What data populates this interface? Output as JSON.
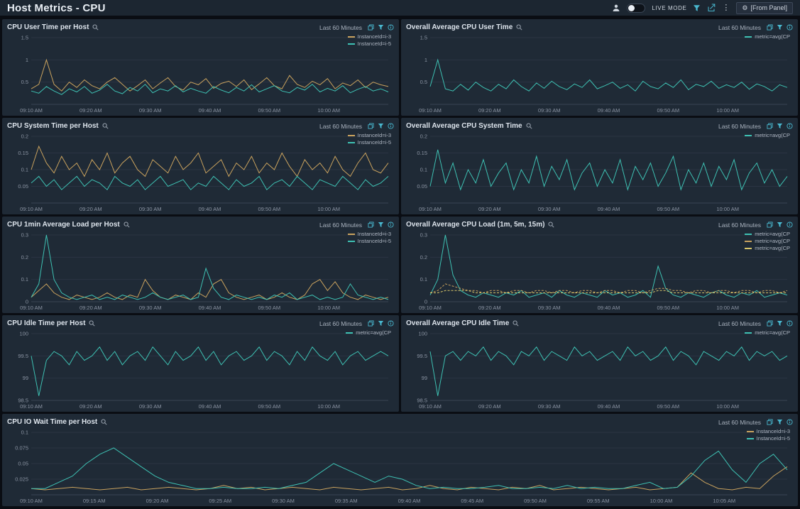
{
  "header": {
    "title": "Host Metrics - CPU",
    "live_mode_label": "LIVE MODE",
    "from_panel_label": "[From Panel]"
  },
  "colors": {
    "accent_teal": "#49b8cf",
    "series_orange": "#c9a25e",
    "series_teal": "#3ec1b3",
    "series_yellow": "#d8c66a",
    "panel_bg": "#1f2a36",
    "grid_line": "#2b3443"
  },
  "panels": [
    {
      "type": "line",
      "title": "CPU User Time per Host",
      "time_range": "Last 60 Minutes",
      "ylim": [
        0,
        1.5
      ],
      "yticks": [
        0.5,
        1,
        1.5
      ],
      "xticks": [
        "09:10 AM",
        "09:20 AM",
        "09:30 AM",
        "09:40 AM",
        "09:50 AM",
        "10:00 AM"
      ],
      "series": [
        {
          "name": "InstanceId=i-3",
          "color": "#c9a25e",
          "values": [
            0.35,
            0.45,
            1.0,
            0.45,
            0.3,
            0.5,
            0.38,
            0.55,
            0.42,
            0.35,
            0.5,
            0.6,
            0.45,
            0.3,
            0.42,
            0.55,
            0.35,
            0.48,
            0.6,
            0.4,
            0.32,
            0.5,
            0.44,
            0.58,
            0.36,
            0.47,
            0.52,
            0.4,
            0.55,
            0.33,
            0.46,
            0.6,
            0.42,
            0.35,
            0.65,
            0.45,
            0.38,
            0.52,
            0.44,
            0.58,
            0.35,
            0.48,
            0.42,
            0.55,
            0.38,
            0.5,
            0.44,
            0.4
          ]
        },
        {
          "name": "InstanceId=i-5",
          "color": "#3ec1b3",
          "values": [
            0.3,
            0.25,
            0.4,
            0.3,
            0.22,
            0.35,
            0.28,
            0.4,
            0.25,
            0.32,
            0.45,
            0.3,
            0.24,
            0.38,
            0.3,
            0.45,
            0.26,
            0.35,
            0.3,
            0.42,
            0.28,
            0.36,
            0.3,
            0.25,
            0.4,
            0.32,
            0.26,
            0.38,
            0.3,
            0.44,
            0.28,
            0.35,
            0.42,
            0.3,
            0.26,
            0.38,
            0.32,
            0.45,
            0.28,
            0.36,
            0.3,
            0.42,
            0.26,
            0.34,
            0.4,
            0.3,
            0.35,
            0.28
          ]
        }
      ]
    },
    {
      "type": "line",
      "title": "Overall Average CPU User Time",
      "time_range": "Last 60 Minutes",
      "ylim": [
        0,
        1.5
      ],
      "yticks": [
        0.5,
        1,
        1.5
      ],
      "xticks": [
        "09:10 AM",
        "09:20 AM",
        "09:30 AM",
        "09:40 AM",
        "09:50 AM",
        "10:00 AM"
      ],
      "series": [
        {
          "name": "metric=avg(CP",
          "color": "#3ec1b3",
          "values": [
            0.4,
            1.0,
            0.35,
            0.3,
            0.45,
            0.32,
            0.5,
            0.38,
            0.3,
            0.45,
            0.35,
            0.55,
            0.4,
            0.3,
            0.48,
            0.36,
            0.52,
            0.4,
            0.33,
            0.46,
            0.38,
            0.55,
            0.35,
            0.42,
            0.5,
            0.36,
            0.44,
            0.3,
            0.52,
            0.4,
            0.35,
            0.48,
            0.38,
            0.55,
            0.33,
            0.45,
            0.4,
            0.52,
            0.36,
            0.44,
            0.38,
            0.5,
            0.34,
            0.46,
            0.4,
            0.3,
            0.44,
            0.38
          ]
        }
      ]
    },
    {
      "type": "line",
      "title": "CPU System Time per Host",
      "time_range": "Last 60 Minutes",
      "ylim": [
        0,
        0.2
      ],
      "yticks": [
        0.05,
        0.1,
        0.15,
        0.2
      ],
      "xticks": [
        "09:10 AM",
        "09:20 AM",
        "09:30 AM",
        "09:40 AM",
        "09:50 AM",
        "10:00 AM"
      ],
      "series": [
        {
          "name": "InstanceId=i-3",
          "color": "#c9a25e",
          "values": [
            0.1,
            0.17,
            0.12,
            0.09,
            0.14,
            0.1,
            0.12,
            0.08,
            0.13,
            0.1,
            0.15,
            0.09,
            0.12,
            0.14,
            0.1,
            0.08,
            0.13,
            0.11,
            0.09,
            0.14,
            0.1,
            0.12,
            0.15,
            0.09,
            0.11,
            0.13,
            0.08,
            0.12,
            0.1,
            0.14,
            0.09,
            0.12,
            0.1,
            0.15,
            0.11,
            0.08,
            0.13,
            0.1,
            0.12,
            0.09,
            0.14,
            0.1,
            0.08,
            0.12,
            0.15,
            0.1,
            0.09,
            0.12
          ]
        },
        {
          "name": "InstanceId=i-5",
          "color": "#3ec1b3",
          "values": [
            0.06,
            0.08,
            0.05,
            0.07,
            0.04,
            0.06,
            0.08,
            0.05,
            0.07,
            0.06,
            0.04,
            0.08,
            0.06,
            0.05,
            0.07,
            0.04,
            0.06,
            0.08,
            0.05,
            0.06,
            0.07,
            0.04,
            0.06,
            0.05,
            0.08,
            0.06,
            0.04,
            0.07,
            0.05,
            0.06,
            0.08,
            0.04,
            0.06,
            0.07,
            0.05,
            0.08,
            0.06,
            0.04,
            0.07,
            0.06,
            0.05,
            0.08,
            0.06,
            0.04,
            0.07,
            0.05,
            0.06,
            0.08
          ]
        }
      ]
    },
    {
      "type": "line",
      "title": "Overall Average CPU System Time",
      "time_range": "Last 60 Minutes",
      "ylim": [
        0,
        0.2
      ],
      "yticks": [
        0.05,
        0.1,
        0.15,
        0.2
      ],
      "xticks": [
        "09:10 AM",
        "09:20 AM",
        "09:30 AM",
        "09:40 AM",
        "09:50 AM",
        "10:00 AM"
      ],
      "series": [
        {
          "name": "metric=avg(CP",
          "color": "#3ec1b3",
          "values": [
            0.05,
            0.16,
            0.06,
            0.12,
            0.04,
            0.1,
            0.06,
            0.13,
            0.05,
            0.09,
            0.12,
            0.04,
            0.1,
            0.06,
            0.14,
            0.05,
            0.11,
            0.07,
            0.13,
            0.04,
            0.09,
            0.12,
            0.05,
            0.1,
            0.06,
            0.13,
            0.04,
            0.11,
            0.07,
            0.12,
            0.05,
            0.09,
            0.14,
            0.04,
            0.1,
            0.06,
            0.12,
            0.05,
            0.11,
            0.07,
            0.13,
            0.04,
            0.09,
            0.12,
            0.06,
            0.1,
            0.05,
            0.08
          ]
        }
      ]
    },
    {
      "type": "line",
      "title": "CPU 1min Average Load per Host",
      "time_range": "Last 60 Minutes",
      "ylim": [
        0,
        0.3
      ],
      "yticks": [
        0,
        0.1,
        0.2,
        0.3
      ],
      "xticks": [
        "09:10 AM",
        "09:20 AM",
        "09:30 AM",
        "09:40 AM",
        "09:50 AM",
        "10:00 AM"
      ],
      "series": [
        {
          "name": "InstanceId=i-3",
          "color": "#c9a25e",
          "values": [
            0.02,
            0.05,
            0.08,
            0.04,
            0.02,
            0.01,
            0.03,
            0.02,
            0.01,
            0.02,
            0.04,
            0.02,
            0.01,
            0.03,
            0.02,
            0.1,
            0.05,
            0.02,
            0.01,
            0.03,
            0.02,
            0.01,
            0.04,
            0.02,
            0.08,
            0.1,
            0.04,
            0.02,
            0.01,
            0.02,
            0.03,
            0.01,
            0.02,
            0.04,
            0.02,
            0.01,
            0.03,
            0.08,
            0.1,
            0.05,
            0.09,
            0.04,
            0.02,
            0.01,
            0.03,
            0.02,
            0.01,
            0.02
          ]
        },
        {
          "name": "InstanceId=i-5",
          "color": "#3ec1b3",
          "values": [
            0.02,
            0.08,
            0.3,
            0.1,
            0.04,
            0.02,
            0.01,
            0.02,
            0.03,
            0.01,
            0.02,
            0.01,
            0.03,
            0.02,
            0.01,
            0.02,
            0.04,
            0.02,
            0.01,
            0.02,
            0.03,
            0.01,
            0.02,
            0.15,
            0.06,
            0.02,
            0.01,
            0.03,
            0.02,
            0.01,
            0.02,
            0.01,
            0.03,
            0.02,
            0.04,
            0.01,
            0.02,
            0.03,
            0.01,
            0.02,
            0.01,
            0.02,
            0.08,
            0.03,
            0.02,
            0.01,
            0.02,
            0.01
          ]
        }
      ]
    },
    {
      "type": "line",
      "title": "Overall Average CPU Load (1m, 5m, 15m)",
      "time_range": "Last 60 Minutes",
      "ylim": [
        0,
        0.3
      ],
      "yticks": [
        0,
        0.1,
        0.2,
        0.3
      ],
      "xticks": [
        "09:10 AM",
        "09:20 AM",
        "09:30 AM",
        "09:40 AM",
        "09:50 AM",
        "10:00 AM"
      ],
      "series": [
        {
          "name": "metric=avg(CP",
          "color": "#3ec1b3",
          "values": [
            0.03,
            0.1,
            0.3,
            0.12,
            0.05,
            0.03,
            0.02,
            0.04,
            0.03,
            0.02,
            0.04,
            0.03,
            0.05,
            0.02,
            0.03,
            0.04,
            0.02,
            0.05,
            0.03,
            0.02,
            0.04,
            0.03,
            0.02,
            0.05,
            0.03,
            0.04,
            0.02,
            0.03,
            0.05,
            0.02,
            0.16,
            0.06,
            0.03,
            0.02,
            0.04,
            0.03,
            0.02,
            0.04,
            0.05,
            0.03,
            0.02,
            0.04,
            0.03,
            0.05,
            0.02,
            0.03,
            0.04,
            0.03
          ]
        },
        {
          "name": "metric=avg(CP",
          "color": "#c9a25e",
          "dash": true,
          "values": [
            0.04,
            0.05,
            0.08,
            0.07,
            0.06,
            0.05,
            0.05,
            0.04,
            0.05,
            0.05,
            0.04,
            0.05,
            0.05,
            0.04,
            0.05,
            0.05,
            0.04,
            0.05,
            0.05,
            0.04,
            0.05,
            0.05,
            0.04,
            0.05,
            0.05,
            0.04,
            0.05,
            0.05,
            0.04,
            0.05,
            0.06,
            0.06,
            0.05,
            0.05,
            0.04,
            0.05,
            0.05,
            0.04,
            0.05,
            0.05,
            0.04,
            0.05,
            0.05,
            0.04,
            0.05,
            0.05,
            0.04,
            0.05
          ]
        },
        {
          "name": "metric=avg(CP",
          "color": "#d8c66a",
          "dash": true,
          "values": [
            0.04,
            0.04,
            0.05,
            0.05,
            0.05,
            0.05,
            0.04,
            0.04,
            0.04,
            0.04,
            0.04,
            0.04,
            0.04,
            0.04,
            0.04,
            0.04,
            0.04,
            0.04,
            0.04,
            0.04,
            0.04,
            0.04,
            0.04,
            0.04,
            0.04,
            0.04,
            0.04,
            0.04,
            0.04,
            0.04,
            0.05,
            0.05,
            0.04,
            0.04,
            0.04,
            0.04,
            0.04,
            0.04,
            0.04,
            0.04,
            0.04,
            0.04,
            0.04,
            0.04,
            0.04,
            0.04,
            0.04,
            0.04
          ]
        }
      ]
    },
    {
      "type": "line",
      "title": "CPU Idle Time per Host",
      "time_range": "Last 60 Minutes",
      "ylim": [
        98.5,
        100
      ],
      "yticks": [
        98.5,
        99,
        99.5,
        100
      ],
      "xticks": [
        "09:10 AM",
        "09:20 AM",
        "09:30 AM",
        "09:40 AM",
        "09:50 AM",
        "10:00 AM"
      ],
      "series": [
        {
          "name": "metric=avg(CP",
          "color": "#3ec1b3",
          "values": [
            99.5,
            98.6,
            99.4,
            99.6,
            99.5,
            99.3,
            99.6,
            99.4,
            99.5,
            99.7,
            99.4,
            99.6,
            99.3,
            99.5,
            99.6,
            99.4,
            99.7,
            99.5,
            99.3,
            99.6,
            99.4,
            99.5,
            99.7,
            99.4,
            99.6,
            99.3,
            99.5,
            99.6,
            99.4,
            99.5,
            99.7,
            99.4,
            99.6,
            99.5,
            99.3,
            99.6,
            99.4,
            99.7,
            99.5,
            99.4,
            99.6,
            99.3,
            99.5,
            99.6,
            99.4,
            99.5,
            99.6,
            99.5
          ]
        }
      ]
    },
    {
      "type": "line",
      "title": "Overall Average CPU Idle Time",
      "time_range": "Last 60 Minutes",
      "ylim": [
        98.5,
        100
      ],
      "yticks": [
        98.5,
        99,
        99.5,
        100
      ],
      "xticks": [
        "09:10 AM",
        "09:20 AM",
        "09:30 AM",
        "09:40 AM",
        "09:50 AM",
        "10:00 AM"
      ],
      "series": [
        {
          "name": "metric=avg(CP",
          "color": "#3ec1b3",
          "values": [
            99.6,
            98.6,
            99.5,
            99.6,
            99.4,
            99.6,
            99.5,
            99.7,
            99.4,
            99.6,
            99.5,
            99.3,
            99.6,
            99.5,
            99.7,
            99.4,
            99.6,
            99.5,
            99.4,
            99.7,
            99.5,
            99.6,
            99.4,
            99.5,
            99.6,
            99.4,
            99.7,
            99.5,
            99.6,
            99.4,
            99.5,
            99.7,
            99.4,
            99.6,
            99.5,
            99.3,
            99.6,
            99.5,
            99.4,
            99.6,
            99.5,
            99.7,
            99.4,
            99.6,
            99.5,
            99.6,
            99.4,
            99.5
          ]
        }
      ]
    },
    {
      "type": "line",
      "title": "CPU IO Wait Time per Host",
      "time_range": "Last 60 Minutes",
      "full_width": true,
      "ylim": [
        0,
        0.1
      ],
      "yticks": [
        0.025,
        0.05,
        0.075,
        0.1
      ],
      "xticks": [
        "09:10 AM",
        "09:15 AM",
        "09:20 AM",
        "09:25 AM",
        "09:30 AM",
        "09:35 AM",
        "09:40 AM",
        "09:45 AM",
        "09:50 AM",
        "09:55 AM",
        "10:00 AM",
        "10:05 AM"
      ],
      "series": [
        {
          "name": "InstanceId=i-3",
          "color": "#c9a25e",
          "values": [
            0.01,
            0.008,
            0.01,
            0.012,
            0.01,
            0.008,
            0.01,
            0.012,
            0.008,
            0.01,
            0.012,
            0.01,
            0.008,
            0.01,
            0.015,
            0.01,
            0.012,
            0.008,
            0.01,
            0.012,
            0.01,
            0.008,
            0.012,
            0.01,
            0.008,
            0.01,
            0.012,
            0.008,
            0.01,
            0.015,
            0.01,
            0.008,
            0.012,
            0.01,
            0.008,
            0.012,
            0.01,
            0.015,
            0.008,
            0.01,
            0.012,
            0.01,
            0.008,
            0.01,
            0.012,
            0.008,
            0.01,
            0.012,
            0.035,
            0.02,
            0.01,
            0.008,
            0.012,
            0.01,
            0.03,
            0.045
          ]
        },
        {
          "name": "InstanceId=i-5",
          "color": "#3ec1b3",
          "values": [
            0.01,
            0.01,
            0.02,
            0.03,
            0.05,
            0.065,
            0.075,
            0.06,
            0.045,
            0.03,
            0.02,
            0.015,
            0.01,
            0.01,
            0.012,
            0.01,
            0.01,
            0.012,
            0.01,
            0.015,
            0.02,
            0.035,
            0.05,
            0.04,
            0.03,
            0.02,
            0.03,
            0.025,
            0.015,
            0.01,
            0.012,
            0.01,
            0.01,
            0.012,
            0.015,
            0.01,
            0.01,
            0.012,
            0.01,
            0.015,
            0.01,
            0.012,
            0.01,
            0.01,
            0.015,
            0.02,
            0.01,
            0.012,
            0.03,
            0.055,
            0.07,
            0.04,
            0.02,
            0.05,
            0.065,
            0.04
          ]
        }
      ]
    }
  ]
}
